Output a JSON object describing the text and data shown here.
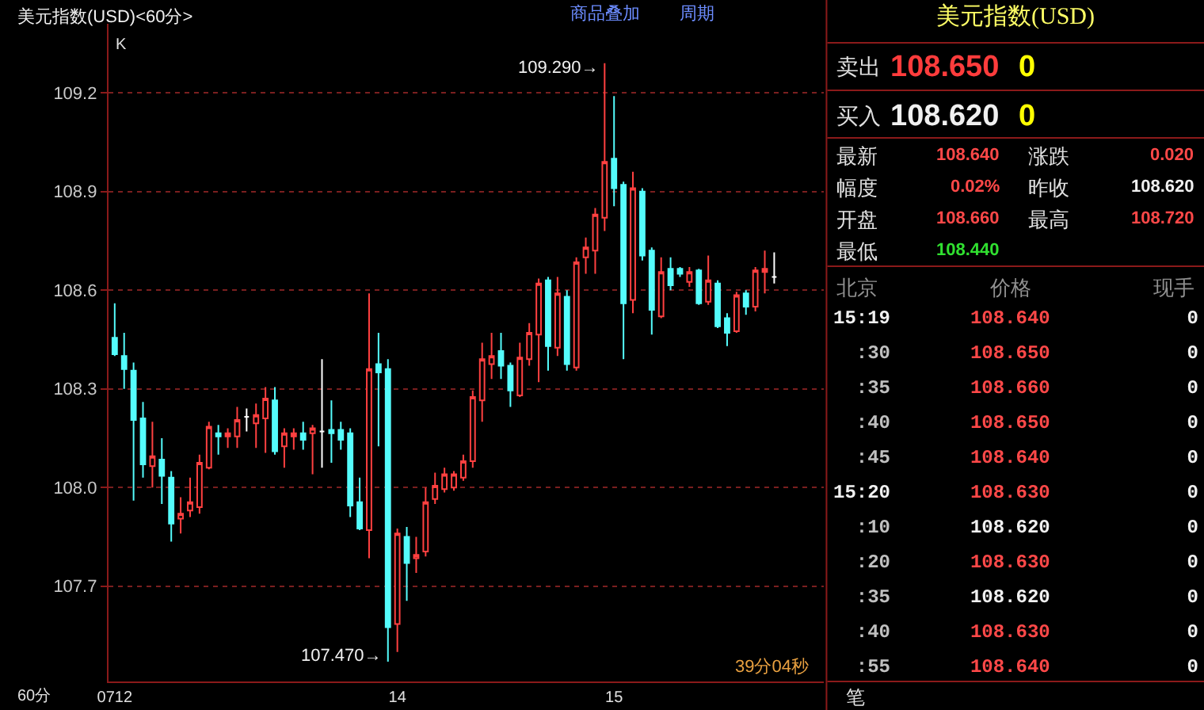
{
  "chart_data": [
    {
      "type": "candlestick",
      "title": "美元指数(USD)<60分>",
      "categories": [
        "0712",
        null,
        null,
        null,
        null,
        null,
        null,
        null,
        null,
        null,
        null,
        null,
        null,
        null,
        null,
        null,
        null,
        null,
        null,
        null,
        null,
        null,
        null,
        null,
        null,
        null,
        null,
        null,
        null,
        null,
        "14",
        null,
        null,
        null,
        null,
        null,
        null,
        null,
        null,
        null,
        null,
        null,
        null,
        null,
        null,
        null,
        null,
        null,
        null,
        null,
        null,
        null,
        null,
        "15",
        null,
        null,
        null,
        null,
        null,
        null,
        null,
        null,
        null,
        null,
        null,
        null,
        null,
        null,
        null,
        null,
        null
      ],
      "ohlc": [
        [
          108.455,
          108.56,
          108.4,
          108.405
        ],
        [
          108.4,
          108.47,
          108.3,
          108.36
        ],
        [
          108.355,
          108.38,
          107.96,
          108.205
        ],
        [
          108.21,
          108.26,
          108.03,
          108.07
        ],
        [
          108.065,
          108.2,
          108.0,
          108.095
        ],
        [
          108.085,
          108.15,
          107.95,
          108.035
        ],
        [
          108.03,
          108.05,
          107.835,
          107.89
        ],
        [
          107.905,
          107.97,
          107.86,
          107.92
        ],
        [
          107.93,
          108.03,
          107.91,
          107.955
        ],
        [
          107.94,
          108.1,
          107.92,
          108.075
        ],
        [
          108.06,
          108.2,
          108.055,
          108.185
        ],
        [
          108.165,
          108.19,
          108.1,
          108.155
        ],
        [
          108.155,
          108.18,
          108.12,
          108.165
        ],
        [
          108.155,
          108.245,
          108.12,
          108.205
        ],
        [
          108.215,
          108.24,
          108.17,
          108.215
        ],
        [
          108.195,
          108.255,
          108.12,
          108.22
        ],
        [
          108.21,
          108.305,
          108.105,
          108.27
        ],
        [
          108.265,
          108.305,
          108.1,
          108.11
        ],
        [
          108.125,
          108.18,
          108.06,
          108.165
        ],
        [
          108.155,
          108.18,
          108.115,
          108.165
        ],
        [
          108.165,
          108.2,
          108.115,
          108.145
        ],
        [
          108.165,
          108.19,
          108.04,
          108.18
        ],
        [
          108.17,
          108.39,
          108.06,
          108.17
        ],
        [
          108.175,
          108.265,
          108.075,
          108.165
        ],
        [
          108.175,
          108.2,
          108.115,
          108.145
        ],
        [
          108.165,
          108.18,
          107.91,
          107.945
        ],
        [
          107.955,
          108.03,
          107.87,
          107.875
        ],
        [
          107.87,
          108.59,
          107.785,
          108.36
        ],
        [
          108.375,
          108.47,
          108.125,
          108.35
        ],
        [
          108.36,
          108.39,
          107.47,
          107.575
        ],
        [
          107.585,
          107.875,
          107.5,
          107.86
        ],
        [
          107.85,
          107.88,
          107.655,
          107.77
        ],
        [
          107.785,
          107.85,
          107.74,
          107.795
        ],
        [
          107.805,
          108.0,
          107.79,
          107.955
        ],
        [
          107.965,
          108.045,
          107.95,
          108.005
        ],
        [
          107.995,
          108.06,
          107.985,
          108.04
        ],
        [
          108.0,
          108.05,
          107.99,
          108.04
        ],
        [
          108.03,
          108.1,
          108.02,
          108.08
        ],
        [
          108.08,
          108.295,
          108.06,
          108.275
        ],
        [
          108.265,
          108.44,
          108.2,
          108.39
        ],
        [
          108.375,
          108.47,
          108.33,
          108.4
        ],
        [
          108.415,
          108.47,
          108.33,
          108.37
        ],
        [
          108.37,
          108.38,
          108.245,
          108.295
        ],
        [
          108.28,
          108.44,
          108.275,
          108.395
        ],
        [
          108.39,
          108.5,
          108.37,
          108.47
        ],
        [
          108.465,
          108.635,
          108.32,
          108.62
        ],
        [
          108.63,
          108.64,
          108.355,
          108.43
        ],
        [
          108.425,
          108.64,
          108.4,
          108.59
        ],
        [
          108.58,
          108.6,
          108.355,
          108.375
        ],
        [
          108.365,
          108.7,
          108.355,
          108.685
        ],
        [
          108.7,
          108.76,
          108.65,
          108.73
        ],
        [
          108.72,
          108.85,
          108.65,
          108.83
        ],
        [
          108.82,
          109.29,
          108.78,
          108.99
        ],
        [
          109.0,
          109.19,
          108.855,
          108.91
        ],
        [
          108.92,
          108.93,
          108.39,
          108.56
        ],
        [
          108.57,
          108.96,
          108.53,
          108.91
        ],
        [
          108.9,
          108.91,
          108.69,
          108.705
        ],
        [
          108.72,
          108.73,
          108.465,
          108.54
        ],
        [
          108.52,
          108.7,
          108.515,
          108.655
        ],
        [
          108.665,
          108.7,
          108.6,
          108.615
        ],
        [
          108.665,
          108.67,
          108.64,
          108.65
        ],
        [
          108.625,
          108.67,
          108.61,
          108.655
        ],
        [
          108.66,
          108.665,
          108.555,
          108.56
        ],
        [
          108.565,
          108.705,
          108.555,
          108.63
        ],
        [
          108.62,
          108.63,
          108.485,
          108.49
        ],
        [
          108.515,
          108.53,
          108.43,
          108.47
        ],
        [
          108.475,
          108.595,
          108.47,
          108.585
        ],
        [
          108.59,
          108.6,
          108.525,
          108.55
        ],
        [
          108.55,
          108.67,
          108.535,
          108.66
        ],
        [
          108.655,
          108.72,
          108.59,
          108.665
        ],
        [
          108.64,
          108.715,
          108.62,
          108.64
        ]
      ],
      "colors": [
        "#54fcfc",
        "#54fcfc",
        "#54fcfc",
        "#54fcfc",
        "#ff4040",
        "#54fcfc",
        "#54fcfc",
        "#ff4040",
        "#ff4040",
        "#ff4040",
        "#ff4040",
        "#54fcfc",
        "#ff4040",
        "#ff4040",
        "#ffffff",
        "#ff4040",
        "#ff4040",
        "#54fcfc",
        "#ff4040",
        "#ff4040",
        "#54fcfc",
        "#ff4040",
        "#ffffff",
        "#54fcfc",
        "#54fcfc",
        "#54fcfc",
        "#54fcfc",
        "#ff4040",
        "#54fcfc",
        "#54fcfc",
        "#ff4040",
        "#54fcfc",
        "#ff4040",
        "#ff4040",
        "#ff4040",
        "#ff4040",
        "#ff4040",
        "#ff4040",
        "#ff4040",
        "#ff4040",
        "#ff4040",
        "#54fcfc",
        "#54fcfc",
        "#ff4040",
        "#ff4040",
        "#ff4040",
        "#54fcfc",
        "#ff4040",
        "#54fcfc",
        "#ff4040",
        "#ff4040",
        "#ff4040",
        "#ff4040",
        "#54fcfc",
        "#54fcfc",
        "#ff4040",
        "#54fcfc",
        "#54fcfc",
        "#ff4040",
        "#54fcfc",
        "#54fcfc",
        "#ff4040",
        "#54fcfc",
        "#ff4040",
        "#54fcfc",
        "#54fcfc",
        "#ff4040",
        "#54fcfc",
        "#ff4040",
        "#ff4040",
        "#ffffff"
      ],
      "ylim": [
        107.41,
        109.41
      ],
      "yticks": [
        107.7,
        {
          "value": 108.0,
          "label": "108.0"
        },
        108.3,
        108.6,
        108.9,
        109.2
      ],
      "grid": "y",
      "annotations": [
        "K",
        "60分",
        "39分04秒",
        "商品叠加",
        "周期",
        "109.290→",
        "107.470→"
      ]
    },
    {
      "type": "other",
      "title": "美元指数(USD)",
      "annotations": [
        "卖出",
        "108.650",
        "0",
        "买入",
        "108.620",
        "0",
        "最新",
        "108.640",
        "涨跌",
        "0.020",
        "幅度",
        "0.02%",
        "昨收",
        "108.620",
        "开盘",
        "108.660",
        "最高",
        "108.720",
        "最低",
        "108.440",
        "北京",
        "价格",
        "现手",
        "15:19",
        "108.640",
        "0",
        ":30",
        "108.650",
        "0",
        ":35",
        "108.660",
        "0",
        ":40",
        "108.650",
        "0",
        ":45",
        "108.640",
        "0",
        "15:20",
        "108.630",
        "0",
        ":10",
        "108.620",
        "0",
        ":20",
        "108.630",
        "0",
        ":35",
        "108.620",
        "0",
        ":40",
        "108.630",
        "0",
        ":55",
        "108.640",
        "0",
        "笔"
      ],
      "colors": [
        "#e0e0e0",
        "#ff3c3c",
        "#ffff00",
        "#e0e0e0",
        "#f0f0f0",
        "#ffff00",
        "#e0e0e0",
        "#ff4848",
        "#e0e0e0",
        "#ff4848",
        "#e0e0e0",
        "#ff4848",
        "#e0e0e0",
        "#f0f0f0",
        "#e0e0e0",
        "#ff4848",
        "#e0e0e0",
        "#ff4848",
        "#e0e0e0",
        "#30e030",
        "#909090",
        "#909090",
        "#909090",
        "#f0f0f0",
        "#ff4848",
        "#f0f0f0",
        "#c0c0c0",
        "#ff4848",
        "#f0f0f0",
        "#c0c0c0",
        "#ff4848",
        "#f0f0f0",
        "#c0c0c0",
        "#ff4848",
        "#f0f0f0",
        "#c0c0c0",
        "#ff4848",
        "#f0f0f0",
        "#f0f0f0",
        "#ff4848",
        "#f0f0f0",
        "#c0c0c0",
        "#f0f0f0",
        "#f0f0f0",
        "#c0c0c0",
        "#ff4848",
        "#f0f0f0",
        "#c0c0c0",
        "#f0f0f0",
        "#f0f0f0",
        "#c0c0c0",
        "#ff4848",
        "#f0f0f0",
        "#c0c0c0",
        "#ff4848",
        "#f0f0f0",
        "#e0e0e0"
      ]
    }
  ]
}
